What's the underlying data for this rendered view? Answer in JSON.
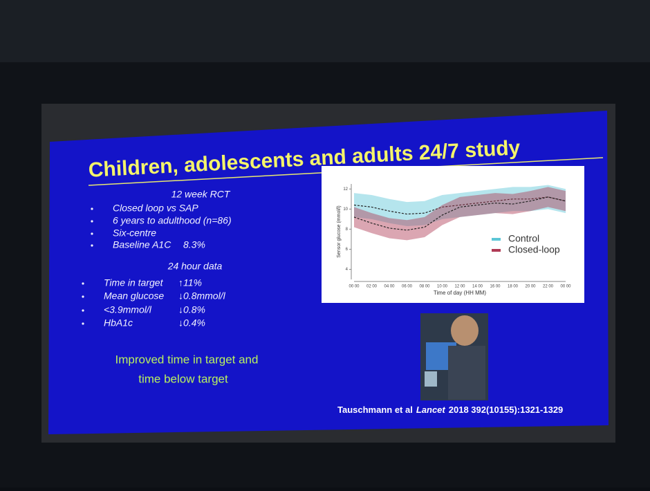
{
  "slide": {
    "title": "Children, adolescents and adults 24/7 study",
    "section1": {
      "heading": "12 week RCT",
      "rows": [
        [
          "Closed loop vs SAP"
        ],
        [
          "6 years to adulthood (n=86)"
        ],
        [
          "Six-centre"
        ],
        [
          "Baseline A1C",
          "8.3%"
        ]
      ]
    },
    "section2": {
      "heading": "24 hour data",
      "rows": [
        [
          "Time in target",
          "↑11%"
        ],
        [
          "Mean glucose",
          "↓0.8mmol/l"
        ],
        [
          "<3.9mmol/l",
          "↓0.8%"
        ],
        [
          "HbA1c",
          "↓0.4%"
        ]
      ]
    },
    "conclusion": [
      "Improved time in target and",
      "time below target"
    ],
    "citation": {
      "authors": "Tauschmann et al",
      "journal": "Lancet",
      "details": "2018 392(10155):1321-1329"
    }
  },
  "chart_data": {
    "type": "line",
    "y_label": "Sensor glucose (mmol/l)",
    "x_label": "Time of day (HH MM)",
    "categories": [
      "00 00",
      "02 00",
      "04 00",
      "06 00",
      "08 00",
      "10 00",
      "12 00",
      "14 00",
      "16 00",
      "18 00",
      "20 00",
      "22 00",
      "00 00"
    ],
    "ylim": [
      3,
      12.5
    ],
    "yticks": [
      4,
      6,
      8,
      10,
      12
    ],
    "series": [
      {
        "name": "Control",
        "color": "#5cc6d6",
        "values": [
          10.4,
          10.2,
          9.8,
          9.5,
          9.6,
          10.2,
          10.4,
          10.6,
          10.8,
          11,
          11,
          11.2,
          10.8
        ],
        "lower": [
          9.2,
          9,
          8.6,
          8.3,
          8.4,
          9,
          9.2,
          9.4,
          9.6,
          9.8,
          9.8,
          10,
          9.6
        ],
        "upper": [
          11.6,
          11.4,
          11,
          10.7,
          10.8,
          11.4,
          11.6,
          11.8,
          12,
          12.2,
          12.2,
          12.4,
          12
        ]
      },
      {
        "name": "Closed-loop",
        "color": "#b03a55",
        "values": [
          9.2,
          8.6,
          8.1,
          7.9,
          8.2,
          9.4,
          10.2,
          10.4,
          10.6,
          10.5,
          10.8,
          11.2,
          10.8
        ],
        "lower": [
          8.2,
          7.6,
          7.1,
          6.9,
          7.2,
          8.4,
          9.2,
          9.4,
          9.6,
          9.5,
          9.8,
          10.2,
          9.8
        ],
        "upper": [
          10.2,
          9.6,
          9.1,
          8.9,
          9.2,
          10.4,
          11.2,
          11.4,
          11.6,
          11.5,
          11.8,
          12.2,
          11.8
        ]
      }
    ],
    "legend": "right"
  }
}
